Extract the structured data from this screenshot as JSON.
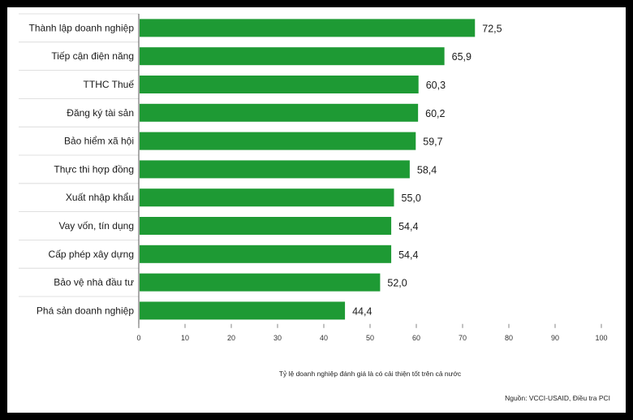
{
  "chart_data": {
    "type": "bar",
    "orientation": "horizontal",
    "categories": [
      "Thành lập doanh nghiệp",
      "Tiếp cận điện năng",
      "TTHC Thuế",
      "Đăng ký tài sản",
      "Bảo hiểm xã hội",
      "Thực thi hợp đồng",
      "Xuất nhập khẩu",
      "Vay vốn, tín dụng",
      "Cấp phép xây dựng",
      "Bảo vệ nhà đầu tư",
      "Phá sản doanh nghiệp"
    ],
    "values": [
      72.5,
      65.9,
      60.3,
      60.2,
      59.7,
      58.4,
      55.0,
      54.4,
      54.4,
      52.0,
      44.4
    ],
    "value_labels": [
      "72,5",
      "65,9",
      "60,3",
      "60,2",
      "59,7",
      "58,4",
      "55,0",
      "54,4",
      "54,4",
      "52,0",
      "44,4"
    ],
    "xticks": [
      "0",
      "10",
      "20",
      "30",
      "40",
      "50",
      "60",
      "70",
      "80",
      "90",
      "100"
    ],
    "xlim": [
      0,
      100
    ],
    "xlabel": "Tỷ lệ doanh nghiệp đánh giá là có cải thiện tốt trên cả nước",
    "ylabel": "",
    "title": "",
    "source": "Nguồn: VCCI-USAID, Điều tra PCI",
    "bar_color": "#1e9a34",
    "grid": false
  }
}
